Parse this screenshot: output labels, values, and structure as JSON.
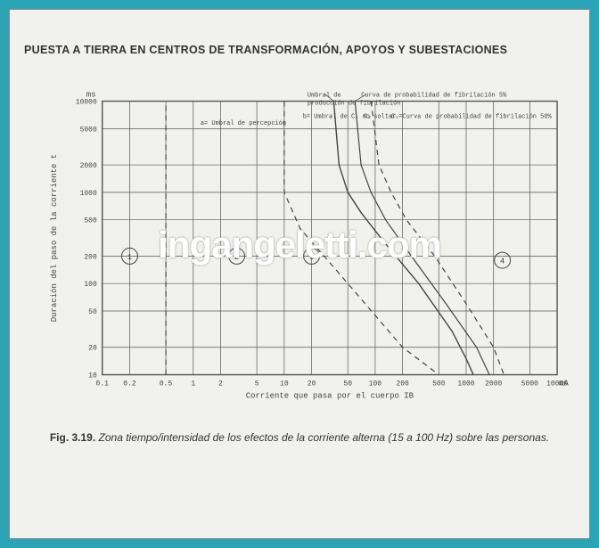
{
  "header": "PUESTA A TIERRA EN CENTROS DE TRANSFORMACIÓN, APOYOS Y SUBESTACIONES",
  "caption_bold": "Fig. 3.19.",
  "caption_rest": "Zona tiempo/intensidad de los efectos de la corriente alterna (15 a 100 Hz) sobre las personas.",
  "watermark": "ingangeletti.com",
  "chart": {
    "type": "log-log-line",
    "background_color": "#f1f1ee",
    "grid_color": "#555555",
    "line_color": "#444444",
    "text_color": "#444444",
    "ylabel": "Duración del paso de la corriente t",
    "xlabel": "Corriente que pasa por el cuerpo IB",
    "y_unit_top": "ms",
    "x_unit_right": "mA",
    "y_ticks": [
      10,
      20,
      50,
      100,
      200,
      500,
      1000,
      2000,
      5000,
      10000
    ],
    "y_labels": [
      "10",
      "20",
      "50",
      "100",
      "200",
      "500",
      "1000",
      "2000",
      "5000",
      "10000"
    ],
    "x_ticks": [
      0.1,
      0.2,
      0.5,
      1,
      2,
      5,
      10,
      20,
      50,
      100,
      200,
      500,
      1000,
      2000,
      5000,
      10000
    ],
    "x_labels": [
      "0.1",
      "0.2",
      "0.5",
      "1",
      "2",
      "5",
      "10",
      "20",
      "50",
      "100",
      "200",
      "500",
      "1000",
      "2000",
      "5000",
      "10000"
    ],
    "xlim": [
      0.1,
      10000
    ],
    "ylim": [
      10,
      10000
    ],
    "annotations": [
      {
        "key": "a_perc",
        "text": "a= Umbral de percepción"
      },
      {
        "key": "b_fibr",
        "text": "Umbral de producción de fibrilación"
      },
      {
        "key": "c_prob5",
        "text": "Curva de probabilidad de fibrilación 5%"
      },
      {
        "key": "b_soltar",
        "text": "b= Umbral de C₁ no soltar"
      },
      {
        "key": "c2",
        "text": "C₂"
      },
      {
        "key": "c3_prob50",
        "text": "C₃=Curva de probabilidad de fibrilación 50%"
      }
    ],
    "zone_markers": [
      "1",
      "2",
      "3",
      "4"
    ],
    "curves": [
      {
        "name": "a-threshold-perception",
        "style": "dashed",
        "width": 1.2,
        "points_mA_ms": [
          [
            0.5,
            10
          ],
          [
            0.5,
            10000
          ]
        ]
      },
      {
        "name": "b-letgo",
        "style": "dashed",
        "width": 1.2,
        "points_mA_ms": [
          [
            10,
            10000
          ],
          [
            10,
            1000
          ],
          [
            15,
            400
          ],
          [
            50,
            100
          ],
          [
            200,
            20
          ],
          [
            500,
            10
          ]
        ]
      },
      {
        "name": "c1-fibrillation-onset",
        "style": "solid",
        "width": 1.4,
        "points_mA_ms": [
          [
            35,
            10000
          ],
          [
            40,
            2000
          ],
          [
            50,
            1000
          ],
          [
            70,
            600
          ],
          [
            120,
            300
          ],
          [
            300,
            100
          ],
          [
            700,
            30
          ],
          [
            1000,
            15
          ],
          [
            1200,
            10
          ]
        ]
      },
      {
        "name": "c2-prob-5",
        "style": "solid",
        "width": 1.2,
        "points_mA_ms": [
          [
            60,
            10000
          ],
          [
            70,
            2000
          ],
          [
            90,
            1000
          ],
          [
            130,
            500
          ],
          [
            250,
            200
          ],
          [
            600,
            60
          ],
          [
            1300,
            20
          ],
          [
            1800,
            10
          ]
        ]
      },
      {
        "name": "c3-prob-50",
        "style": "dashed",
        "width": 1.2,
        "points_mA_ms": [
          [
            90,
            10000
          ],
          [
            110,
            2000
          ],
          [
            150,
            1000
          ],
          [
            220,
            500
          ],
          [
            450,
            200
          ],
          [
            1000,
            60
          ],
          [
            2000,
            20
          ],
          [
            2600,
            10
          ]
        ]
      }
    ]
  }
}
